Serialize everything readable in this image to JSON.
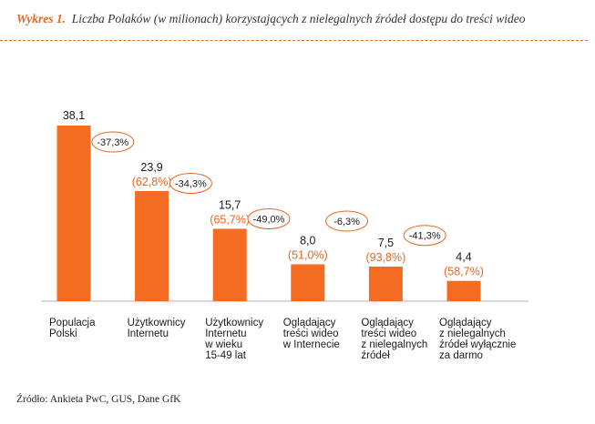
{
  "figure": {
    "label": "Wykres 1.",
    "title": "Liczba Polaków (w milionach) korzystających z nielegalnych źródeł dostępu do treści wideo",
    "source": "Źródło: Ankieta PwC, GUS, Dane GfK"
  },
  "colors": {
    "bar": "#f36c21",
    "accent": "#e8661f",
    "text": "#1a1a1a"
  },
  "chart_data": {
    "type": "bar",
    "title": "Liczba Polaków (w milionach) korzystających z nielegalnych źródeł dostępu do treści wideo",
    "xlabel": "",
    "ylabel": "",
    "ylim": [
      0,
      40
    ],
    "categories": [
      [
        "Populacja",
        "Polski"
      ],
      [
        "Użytkownicy",
        "Internetu"
      ],
      [
        "Użytkownicy",
        "Internetu",
        "w wieku",
        "15-49 lat"
      ],
      [
        "Oglądający",
        "treści wideo",
        "w Internecie"
      ],
      [
        "Oglądający",
        "treści wideo",
        "z nielegalnych",
        "źródeł"
      ],
      [
        "Oglądający",
        "z nielegalnych",
        "źródeł wyłącznie",
        "za darmo"
      ]
    ],
    "values": [
      38.1,
      23.9,
      15.7,
      8.0,
      7.5,
      4.4
    ],
    "value_labels": [
      "38,1",
      "23,9",
      "15,7",
      "8,0",
      "7,5",
      "4,4"
    ],
    "share_labels": [
      "",
      "(62,8%)",
      "(65,7%)",
      "(51,0%)",
      "(93,8%)",
      "(58,7%)"
    ],
    "changes": [
      "-37,3%",
      "-34,3%",
      "-49,0%",
      "-6,3%",
      "-41,3%"
    ]
  }
}
